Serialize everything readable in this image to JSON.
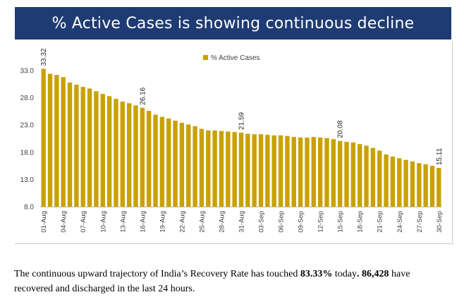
{
  "chart_data": {
    "type": "bar",
    "title": "% Active Cases is showing continuous decline",
    "legend": {
      "label": "% Active Cases",
      "position": "top-center"
    },
    "bar_color": "#c9a100",
    "ylim": [
      8.0,
      33.0
    ],
    "yticks": [
      "8.0",
      "13.0",
      "18.0",
      "23.0",
      "28.0",
      "33.0"
    ],
    "categories": [
      "01-Aug",
      "02-Aug",
      "03-Aug",
      "04-Aug",
      "05-Aug",
      "06-Aug",
      "07-Aug",
      "08-Aug",
      "09-Aug",
      "10-Aug",
      "11-Aug",
      "12-Aug",
      "13-Aug",
      "14-Aug",
      "15-Aug",
      "16-Aug",
      "17-Aug",
      "18-Aug",
      "19-Aug",
      "20-Aug",
      "21-Aug",
      "22-Aug",
      "23-Aug",
      "24-Aug",
      "25-Aug",
      "26-Aug",
      "27-Aug",
      "28-Aug",
      "29-Aug",
      "30-Aug",
      "31-Aug",
      "01-Sep",
      "02-Sep",
      "03-Sep",
      "04-Sep",
      "05-Sep",
      "06-Sep",
      "07-Sep",
      "08-Sep",
      "09-Sep",
      "10-Sep",
      "11-Sep",
      "12-Sep",
      "13-Sep",
      "14-Sep",
      "15-Sep",
      "16-Sep",
      "17-Sep",
      "18-Sep",
      "19-Sep",
      "20-Sep",
      "21-Sep",
      "22-Sep",
      "23-Sep",
      "24-Sep",
      "25-Sep",
      "26-Sep",
      "27-Sep",
      "28-Sep",
      "29-Sep",
      "30-Sep"
    ],
    "xtick_labels": [
      "01-Aug",
      "04-Aug",
      "07-Aug",
      "10-Aug",
      "13-Aug",
      "16-Aug",
      "19-Aug",
      "22-Aug",
      "25-Aug",
      "28-Aug",
      "31-Aug",
      "03-Sep",
      "06-Sep",
      "09-Sep",
      "12-Sep",
      "15-Sep",
      "18-Sep",
      "21-Sep",
      "24-Sep",
      "27-Sep",
      "30-Sep"
    ],
    "values": [
      33.32,
      32.4,
      32.2,
      31.8,
      30.8,
      30.4,
      30.0,
      29.7,
      29.2,
      28.7,
      28.3,
      27.8,
      27.3,
      27.0,
      26.6,
      26.16,
      25.6,
      24.9,
      24.5,
      24.2,
      23.8,
      23.4,
      23.1,
      22.8,
      22.3,
      22.0,
      22.0,
      21.9,
      21.8,
      21.7,
      21.59,
      21.4,
      21.3,
      21.3,
      21.2,
      21.1,
      21.1,
      21.0,
      20.8,
      20.7,
      20.7,
      20.8,
      20.7,
      20.6,
      20.4,
      20.08,
      19.9,
      19.8,
      19.5,
      19.2,
      18.8,
      18.3,
      17.6,
      17.2,
      16.9,
      16.6,
      16.3,
      16.0,
      15.8,
      15.5,
      15.11
    ],
    "data_labels": [
      {
        "category": "01-Aug",
        "text": "33.32"
      },
      {
        "category": "16-Aug",
        "text": "26.16"
      },
      {
        "category": "31-Aug",
        "text": "21.59"
      },
      {
        "category": "15-Sep",
        "text": "20.08"
      },
      {
        "category": "30-Sep",
        "text": "15.11"
      }
    ],
    "grid": false
  },
  "caption": {
    "text_1": "The continuous upward trajectory of India’s Recovery Rate has touched ",
    "bold_1": "83.33%",
    "text_2": " today",
    "bold_2": ". 86,428",
    "text_3": " have recovered and discharged in the last 24 hours."
  }
}
